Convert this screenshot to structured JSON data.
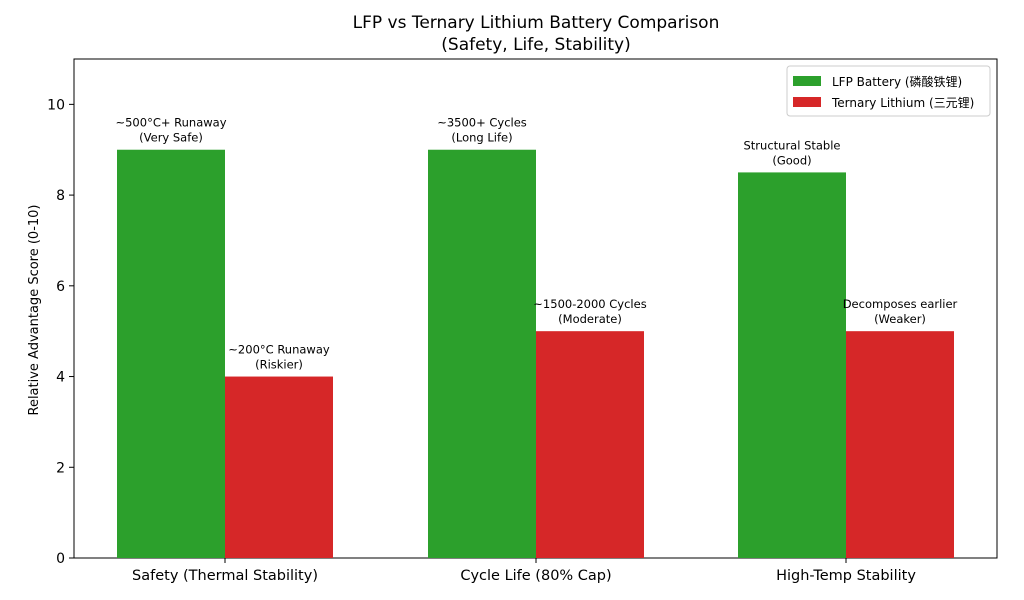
{
  "chart_data": {
    "type": "bar",
    "title": [
      "LFP vs Ternary Lithium Battery Comparison",
      "(Safety, Life, Stability)"
    ],
    "xlabel": "",
    "ylabel": "Relative Advantage Score (0-10)",
    "ylim": [
      0,
      11
    ],
    "yticks": [
      0,
      2,
      4,
      6,
      8,
      10
    ],
    "grid": false,
    "legend_position": "top-right",
    "categories": [
      "Safety (Thermal Stability)",
      "Cycle Life (80% Cap)",
      "High-Temp Stability"
    ],
    "series": [
      {
        "name": "LFP Battery (磷酸铁锂)",
        "color": "#2ca02c",
        "values": [
          9,
          9,
          8.5
        ],
        "labels": [
          [
            "~500°C+ Runaway",
            "(Very Safe)"
          ],
          [
            "~3500+ Cycles",
            "(Long Life)"
          ],
          [
            "Structural Stable",
            "(Good)"
          ]
        ]
      },
      {
        "name": "Ternary Lithium (三元锂)",
        "color": "#d62728",
        "values": [
          4,
          5,
          5
        ],
        "labels": [
          [
            "~200°C Runaway",
            "(Riskier)"
          ],
          [
            "~1500-2000 Cycles",
            "(Moderate)"
          ],
          [
            "Decomposes earlier",
            "(Weaker)"
          ]
        ]
      }
    ]
  }
}
